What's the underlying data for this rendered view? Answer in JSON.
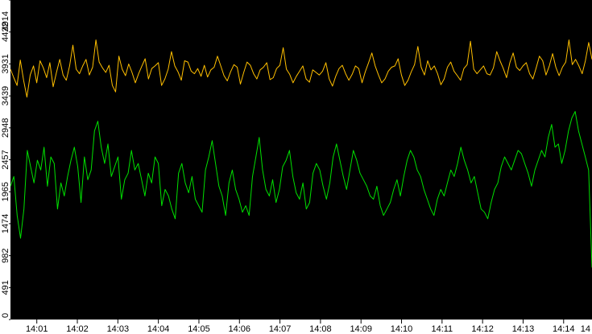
{
  "chart_data": {
    "type": "line",
    "background": "#000000",
    "grid": false,
    "legend": "none",
    "x_ticks": [
      "14:01",
      "14:02",
      "14:03",
      "14:04",
      "14:05",
      "14:06",
      "14:07",
      "14:08",
      "14:09",
      "14:10",
      "14:11",
      "14:12",
      "14:13",
      "14:14",
      "14"
    ],
    "y_ticks": [
      "0",
      "491",
      "982",
      "1474",
      "1965",
      "2457",
      "2948",
      "3439",
      "3931",
      "4422",
      "4914"
    ],
    "ylim": [
      0,
      4914
    ],
    "xlim_minutes": [
      0.35,
      14.7
    ],
    "series": [
      {
        "color": "#ffbf00",
        "x_minutes_start": 0.35,
        "x_minutes_end": 14.7,
        "values": [
          3850,
          3720,
          3600,
          3990,
          3680,
          3420,
          3760,
          3900,
          3640,
          3980,
          3870,
          3720,
          3950,
          3580,
          3800,
          4000,
          3760,
          3680,
          3900,
          4220,
          3850,
          3780,
          3900,
          4000,
          3760,
          3880,
          4300,
          3960,
          3870,
          3800,
          3910,
          3600,
          3500,
          4050,
          3850,
          3750,
          3930,
          3800,
          3640,
          3780,
          3900,
          4010,
          3700,
          3860,
          3900,
          3950,
          3600,
          3700,
          3850,
          4120,
          3900,
          3810,
          3680,
          3980,
          3960,
          3820,
          3780,
          3860,
          3740,
          3910,
          3730,
          3840,
          3880,
          4050,
          3900,
          3750,
          3670,
          3810,
          3920,
          3880,
          3620,
          3800,
          3960,
          3910,
          3780,
          3700,
          3840,
          3880,
          3950,
          3690,
          3720,
          3860,
          3910,
          4180,
          3850,
          3770,
          3640,
          3740,
          3820,
          3900,
          3700,
          3650,
          3840,
          3800,
          3760,
          3820,
          3950,
          3700,
          3590,
          3740,
          3860,
          3910,
          3780,
          3680,
          3770,
          3900,
          3860,
          3640,
          3810,
          3950,
          4100,
          3900,
          3760,
          3640,
          3700,
          3820,
          3880,
          3900,
          4010,
          3760,
          3600,
          3680,
          3810,
          3920,
          4200,
          3880,
          3760,
          3980,
          3840,
          3900,
          3780,
          3610,
          3700,
          3880,
          3960,
          3820,
          3750,
          3680,
          3860,
          3920,
          4280,
          3850,
          3780,
          3840,
          3900,
          3780,
          3760,
          3870,
          4120,
          3980,
          3860,
          3720,
          3950,
          4100,
          3880,
          3830,
          3900,
          3950,
          3780,
          3700,
          3870,
          4050,
          3980,
          3760,
          3900,
          4090,
          3880,
          3750,
          3880,
          3960,
          4300,
          3920,
          4000,
          3900,
          3780,
          3980,
          4260,
          4000
        ]
      },
      {
        "color": "#00e000",
        "x_minutes_start": 0.35,
        "x_minutes_end": 14.7,
        "values": [
          2050,
          2200,
          1600,
          1250,
          1700,
          2600,
          2350,
          2100,
          2450,
          2300,
          2650,
          2050,
          2500,
          2400,
          1700,
          2100,
          1900,
          2200,
          2450,
          2650,
          2350,
          1800,
          2500,
          2150,
          2300,
          2900,
          3050,
          2650,
          2400,
          2700,
          2200,
          2350,
          2500,
          1850,
          2150,
          2250,
          2600,
          2300,
          2400,
          2150,
          1900,
          2250,
          2100,
          2500,
          2400,
          1750,
          2000,
          1900,
          1700,
          1550,
          2250,
          2400,
          2100,
          1950,
          2200,
          1850,
          1750,
          1650,
          2300,
          2500,
          2750,
          2400,
          2050,
          1900,
          1600,
          2100,
          2300,
          2000,
          1850,
          1650,
          1750,
          1600,
          2200,
          2500,
          2800,
          2300,
          2000,
          1900,
          2150,
          1800,
          2000,
          2350,
          2450,
          2600,
          2200,
          1950,
          1850,
          2100,
          1700,
          1800,
          2250,
          2400,
          2300,
          2050,
          1850,
          2100,
          2500,
          2700,
          2450,
          2200,
          2000,
          2300,
          2600,
          2450,
          2250,
          2150,
          2050,
          1900,
          1850,
          2050,
          1750,
          1600,
          1700,
          1800,
          2000,
          2150,
          1900,
          2200,
          2450,
          2600,
          2500,
          2300,
          2200,
          2000,
          1850,
          1700,
          1600,
          1850,
          2000,
          1900,
          2100,
          2300,
          2200,
          2400,
          2650,
          2450,
          2300,
          2100,
          2200,
          1950,
          1700,
          1650,
          1550,
          1800,
          2000,
          2100,
          2350,
          2500,
          2400,
          2300,
          2450,
          2600,
          2550,
          2400,
          2250,
          2050,
          2300,
          2450,
          2600,
          2500,
          2800,
          3000,
          2650,
          2700,
          2400,
          2600,
          2900,
          3100,
          3200,
          2900,
          2700,
          2500,
          2300,
          800
        ]
      }
    ]
  }
}
